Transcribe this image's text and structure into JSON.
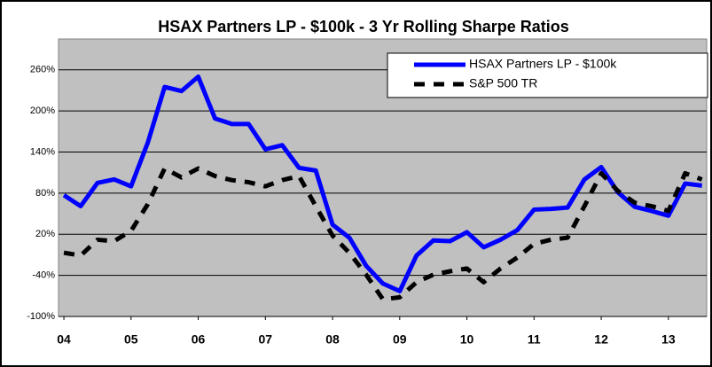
{
  "chart_data": {
    "type": "line",
    "title": "HSAX Partners LP - $100k - 3 Yr Rolling Sharpe Ratios",
    "x": [
      4,
      4.25,
      4.5,
      4.75,
      5,
      5.25,
      5.5,
      5.75,
      6,
      6.25,
      6.5,
      6.75,
      7,
      7.25,
      7.5,
      7.75,
      8,
      8.25,
      8.5,
      8.75,
      9,
      9.25,
      9.5,
      9.75,
      10,
      10.25,
      10.5,
      10.75,
      11,
      11.25,
      11.5,
      11.75,
      12,
      12.25,
      12.5,
      12.75,
      13,
      13.25,
      13.5
    ],
    "series": [
      {
        "name": "HSAX Partners LP - $100k",
        "color": "#0000ff",
        "dash": false,
        "values": [
          77,
          61,
          95,
          100,
          90,
          154,
          235,
          229,
          250,
          189,
          181,
          181,
          144,
          150,
          117,
          113,
          34,
          15,
          -26,
          -52,
          -63,
          -11,
          11,
          10,
          23,
          1,
          12,
          26,
          56,
          57,
          59,
          100,
          118,
          81,
          60,
          54,
          47,
          94,
          91
        ]
      },
      {
        "name": "S&P 500 TR",
        "color": "#000000",
        "dash": true,
        "values": [
          -7,
          -11,
          12,
          10,
          25,
          64,
          116,
          103,
          116,
          105,
          99,
          96,
          90,
          99,
          105,
          61,
          18,
          -7,
          -39,
          -75,
          -72,
          -50,
          -39,
          -34,
          -30,
          -50,
          -30,
          -14,
          6,
          12,
          15,
          61,
          109,
          83,
          66,
          61,
          54,
          109,
          100
        ]
      }
    ],
    "xlim": [
      3.92,
      13.57
    ],
    "xticks": [
      {
        "value": 4,
        "label": "04"
      },
      {
        "value": 5,
        "label": "05"
      },
      {
        "value": 6,
        "label": "06"
      },
      {
        "value": 7,
        "label": "07"
      },
      {
        "value": 8,
        "label": "08"
      },
      {
        "value": 9,
        "label": "09"
      },
      {
        "value": 10,
        "label": "10"
      },
      {
        "value": 11,
        "label": "11"
      },
      {
        "value": 12,
        "label": "12"
      },
      {
        "value": 13,
        "label": "13"
      }
    ],
    "ylim": [
      -100,
      305
    ],
    "yticks": [
      {
        "value": -100,
        "label": "-100%"
      },
      {
        "value": -40,
        "label": "-40%"
      },
      {
        "value": 20,
        "label": "20%"
      },
      {
        "value": 80,
        "label": "80%"
      },
      {
        "value": 140,
        "label": "140%"
      },
      {
        "value": 200,
        "label": "200%"
      },
      {
        "value": 260,
        "label": "260%"
      }
    ],
    "grid": true,
    "legend": "top-right"
  }
}
